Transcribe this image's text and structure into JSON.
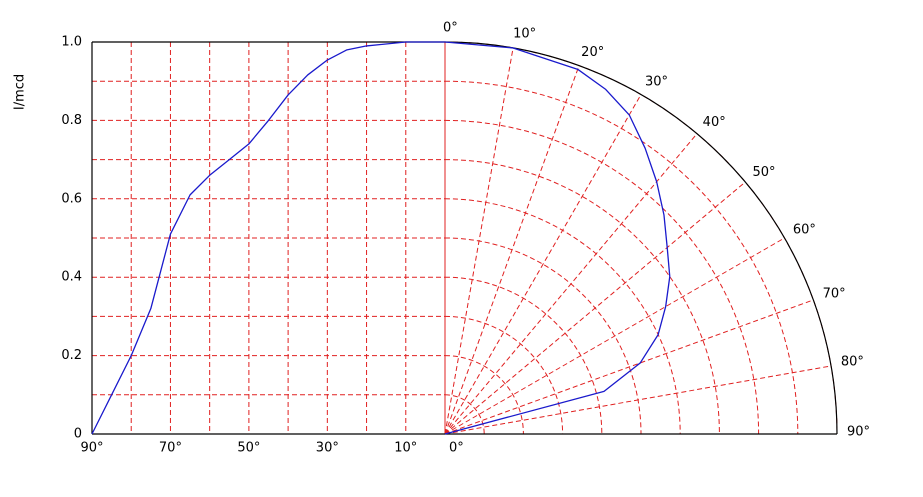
{
  "chart_data": {
    "type": "radiation",
    "ylabel": "I/mcd",
    "x": [
      0,
      10,
      20,
      25,
      30,
      35,
      40,
      45,
      50,
      55,
      60,
      65,
      70,
      75,
      80,
      85,
      90
    ],
    "series": [
      {
        "color": "#1a1acc",
        "values": [
          1,
          1,
          0.99,
          0.98,
          0.954,
          0.916,
          0.865,
          0.8,
          0.74,
          0.7,
          0.66,
          0.61,
          0.51,
          0.32,
          0.2,
          0.1,
          0
        ]
      },
      {
        "color": "#1a1acc",
        "values": [
          1,
          1,
          0.99,
          0.97,
          0.94,
          0.89,
          0.84,
          0.79,
          0.74,
          0.7,
          0.65,
          0.6,
          0.53,
          0.42,
          0,
          0,
          0
        ]
      }
    ],
    "xlim": [
      90,
      0
    ],
    "ylim": [
      0,
      1
    ],
    "xticks": [
      {
        "value": 90,
        "label": "90°"
      },
      {
        "value": 70,
        "label": "70°"
      },
      {
        "value": 50,
        "label": "50°"
      },
      {
        "value": 30,
        "label": "30°"
      },
      {
        "value": 10,
        "label": "10°"
      },
      {
        "value": 0,
        "label": "0°"
      }
    ],
    "yticks": [
      0,
      0.2,
      0.4,
      0.6,
      0.8,
      {
        "value": 1,
        "label": "1.0"
      }
    ],
    "xgrid": [
      0,
      10,
      20,
      30,
      40,
      50,
      60,
      70,
      80,
      90
    ],
    "ygrid": [
      0.1,
      0.2,
      0.3,
      0.4,
      0.5,
      0.6,
      0.7,
      0.8,
      0.9,
      1
    ],
    "angle_ticks": [
      {
        "value": 0,
        "label": "0°"
      },
      {
        "value": 10,
        "label": "10°"
      },
      {
        "value": 20,
        "label": "20°"
      },
      {
        "value": 30,
        "label": "30°"
      },
      {
        "value": 40,
        "label": "40°"
      },
      {
        "value": 50,
        "label": "50°"
      },
      {
        "value": 60,
        "label": "60°"
      },
      {
        "value": 70,
        "label": "70°"
      },
      {
        "value": 80,
        "label": "80°"
      },
      {
        "value": 90,
        "label": "90°"
      }
    ],
    "grid": true
  }
}
